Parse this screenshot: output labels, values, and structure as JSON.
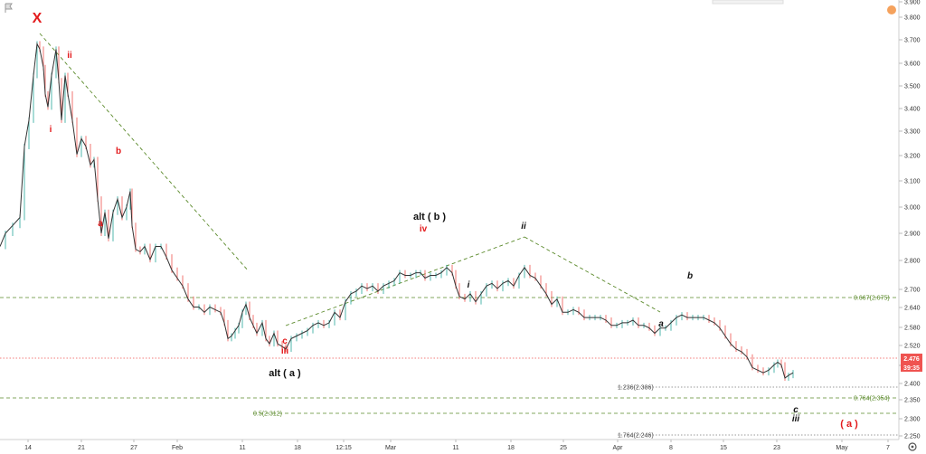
{
  "chart_data": {
    "type": "candlestick",
    "title": "",
    "ylim": [
      2.25,
      3.9
    ],
    "y_ticks": [
      "3.900",
      "3.800",
      "3.700",
      "3.600",
      "3.500",
      "3.400",
      "3.300",
      "3.200",
      "3.100",
      "3.000",
      "2.900",
      "2.800",
      "2.700",
      "2.640",
      "2.580",
      "2.520",
      "2.460",
      "2.400",
      "2.350",
      "2.300",
      "2.250"
    ],
    "x_ticks": [
      "14",
      "21",
      "27",
      "Feb",
      "11",
      "18",
      "12:15",
      "Mar",
      "11",
      "18",
      "25",
      "Apr",
      "8",
      "15",
      "23",
      "May",
      "7"
    ],
    "price_path": [
      [
        0,
        2.97
      ],
      [
        6,
        3.02
      ],
      [
        14,
        3.05
      ],
      [
        22,
        3.08
      ],
      [
        27,
        3.35
      ],
      [
        32,
        3.45
      ],
      [
        37,
        3.62
      ],
      [
        41,
        3.74
      ],
      [
        44,
        3.72
      ],
      [
        48,
        3.65
      ],
      [
        50,
        3.55
      ],
      [
        53,
        3.5
      ],
      [
        57,
        3.62
      ],
      [
        62,
        3.72
      ],
      [
        65,
        3.6
      ],
      [
        68,
        3.45
      ],
      [
        72,
        3.62
      ],
      [
        75,
        3.55
      ],
      [
        80,
        3.45
      ],
      [
        85,
        3.32
      ],
      [
        90,
        3.38
      ],
      [
        95,
        3.35
      ],
      [
        100,
        3.28
      ],
      [
        104,
        3.3
      ],
      [
        108,
        3.15
      ],
      [
        112,
        3.02
      ],
      [
        116,
        3.1
      ],
      [
        120,
        3.0
      ],
      [
        125,
        3.1
      ],
      [
        130,
        3.15
      ],
      [
        135,
        3.08
      ],
      [
        140,
        3.12
      ],
      [
        144,
        3.18
      ],
      [
        146,
        3.05
      ],
      [
        150,
        2.96
      ],
      [
        155,
        2.95
      ],
      [
        160,
        2.97
      ],
      [
        166,
        2.92
      ],
      [
        172,
        2.97
      ],
      [
        178,
        2.97
      ],
      [
        184,
        2.93
      ],
      [
        190,
        2.88
      ],
      [
        196,
        2.85
      ],
      [
        202,
        2.82
      ],
      [
        208,
        2.77
      ],
      [
        214,
        2.74
      ],
      [
        220,
        2.74
      ],
      [
        226,
        2.72
      ],
      [
        232,
        2.74
      ],
      [
        238,
        2.73
      ],
      [
        244,
        2.72
      ],
      [
        248,
        2.68
      ],
      [
        252,
        2.62
      ],
      [
        256,
        2.63
      ],
      [
        260,
        2.65
      ],
      [
        264,
        2.67
      ],
      [
        268,
        2.72
      ],
      [
        272,
        2.75
      ],
      [
        276,
        2.7
      ],
      [
        280,
        2.67
      ],
      [
        284,
        2.64
      ],
      [
        290,
        2.68
      ],
      [
        294,
        2.62
      ],
      [
        298,
        2.6
      ],
      [
        303,
        2.64
      ],
      [
        307,
        2.6
      ],
      [
        312,
        2.59
      ],
      [
        316,
        2.58
      ],
      [
        322,
        2.62
      ],
      [
        328,
        2.63
      ],
      [
        334,
        2.64
      ],
      [
        340,
        2.65
      ],
      [
        346,
        2.67
      ],
      [
        352,
        2.68
      ],
      [
        358,
        2.67
      ],
      [
        364,
        2.68
      ],
      [
        370,
        2.72
      ],
      [
        376,
        2.7
      ],
      [
        382,
        2.76
      ],
      [
        388,
        2.79
      ],
      [
        394,
        2.8
      ],
      [
        400,
        2.82
      ],
      [
        406,
        2.81
      ],
      [
        412,
        2.82
      ],
      [
        418,
        2.8
      ],
      [
        424,
        2.82
      ],
      [
        430,
        2.83
      ],
      [
        436,
        2.84
      ],
      [
        442,
        2.87
      ],
      [
        448,
        2.86
      ],
      [
        454,
        2.86
      ],
      [
        460,
        2.87
      ],
      [
        465,
        2.87
      ],
      [
        470,
        2.85
      ],
      [
        476,
        2.86
      ],
      [
        482,
        2.86
      ],
      [
        488,
        2.87
      ],
      [
        494,
        2.89
      ],
      [
        500,
        2.87
      ],
      [
        504,
        2.82
      ],
      [
        508,
        2.78
      ],
      [
        514,
        2.77
      ],
      [
        520,
        2.79
      ],
      [
        526,
        2.76
      ],
      [
        532,
        2.79
      ],
      [
        538,
        2.82
      ],
      [
        544,
        2.83
      ],
      [
        550,
        2.81
      ],
      [
        556,
        2.83
      ],
      [
        562,
        2.84
      ],
      [
        568,
        2.82
      ],
      [
        574,
        2.86
      ],
      [
        580,
        2.89
      ],
      [
        586,
        2.86
      ],
      [
        592,
        2.85
      ],
      [
        598,
        2.82
      ],
      [
        604,
        2.79
      ],
      [
        610,
        2.75
      ],
      [
        616,
        2.77
      ],
      [
        622,
        2.72
      ],
      [
        628,
        2.72
      ],
      [
        634,
        2.73
      ],
      [
        640,
        2.72
      ],
      [
        646,
        2.7
      ],
      [
        652,
        2.7
      ],
      [
        658,
        2.7
      ],
      [
        664,
        2.7
      ],
      [
        670,
        2.69
      ],
      [
        676,
        2.67
      ],
      [
        682,
        2.67
      ],
      [
        688,
        2.68
      ],
      [
        694,
        2.68
      ],
      [
        700,
        2.69
      ],
      [
        706,
        2.67
      ],
      [
        712,
        2.67
      ],
      [
        718,
        2.66
      ],
      [
        724,
        2.64
      ],
      [
        730,
        2.66
      ],
      [
        736,
        2.66
      ],
      [
        742,
        2.68
      ],
      [
        748,
        2.7
      ],
      [
        754,
        2.71
      ],
      [
        760,
        2.7
      ],
      [
        766,
        2.7
      ],
      [
        772,
        2.7
      ],
      [
        778,
        2.7
      ],
      [
        784,
        2.69
      ],
      [
        790,
        2.68
      ],
      [
        796,
        2.66
      ],
      [
        802,
        2.63
      ],
      [
        808,
        2.6
      ],
      [
        814,
        2.58
      ],
      [
        820,
        2.57
      ],
      [
        826,
        2.55
      ],
      [
        832,
        2.51
      ],
      [
        838,
        2.5
      ],
      [
        844,
        2.49
      ],
      [
        850,
        2.5
      ],
      [
        856,
        2.52
      ],
      [
        860,
        2.53
      ],
      [
        864,
        2.52
      ],
      [
        868,
        2.47
      ],
      [
        872,
        2.48
      ],
      [
        877,
        2.49
      ]
    ],
    "last_price": "2.476",
    "countdown": "39:35",
    "fib_levels": [
      {
        "label": "0.667(2.675)",
        "value": 2.675,
        "color": "#5b8a2b"
      },
      {
        "label": "1.236(2.386)",
        "value": 2.386,
        "color": "#7a7a7a"
      },
      {
        "label": "0.764(2.354)",
        "value": 2.354,
        "color": "#5b8a2b"
      },
      {
        "label": "0.5(2.312)",
        "value": 2.312,
        "color": "#5b8a2b"
      },
      {
        "label": "1.764(2.246)",
        "value": 2.246,
        "color": "#7a7a7a"
      }
    ],
    "wave_labels": [
      {
        "text": "X",
        "color": "red"
      },
      {
        "text": "ii",
        "color": "red"
      },
      {
        "text": "i",
        "color": "red"
      },
      {
        "text": "b",
        "color": "red"
      },
      {
        "text": "a",
        "color": "red"
      },
      {
        "text": "c",
        "color": "red"
      },
      {
        "text": "iii",
        "color": "red"
      },
      {
        "text": "alt ( a )",
        "color": "black"
      },
      {
        "text": "alt ( b )",
        "color": "black"
      },
      {
        "text": "iv",
        "color": "red"
      },
      {
        "text": "ii",
        "color": "black-italic"
      },
      {
        "text": "i",
        "color": "black-italic"
      },
      {
        "text": "b",
        "color": "black-italic"
      },
      {
        "text": "a",
        "color": "black-italic"
      },
      {
        "text": "c",
        "color": "black-italic"
      },
      {
        "text": "iii",
        "color": "black-italic"
      },
      {
        "text": "( a )",
        "color": "red"
      }
    ],
    "colors": {
      "up": "#26a69a",
      "down": "#ef5350",
      "line": "#333333",
      "trend": "#5b8a2b",
      "price_tag": "#ef5350"
    }
  }
}
